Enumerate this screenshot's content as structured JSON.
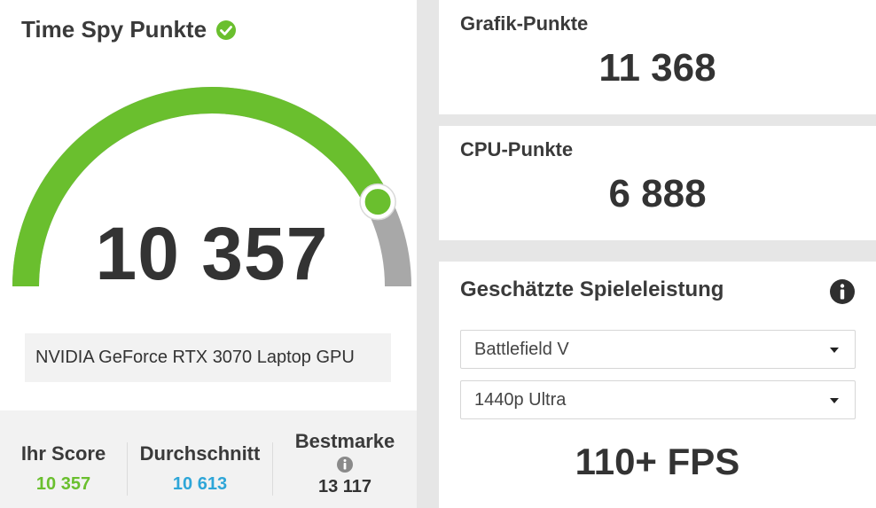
{
  "score_panel": {
    "title": "Time Spy Punkte",
    "score": "10 357",
    "gauge_level": 0.85,
    "gpu_name": "NVIDIA GeForce RTX 3070 Laptop GPU",
    "stats": {
      "your_score_label": "Ihr Score",
      "your_score_value": "10 357",
      "average_label": "Durchschnitt",
      "average_value": "10 613",
      "best_label": "Bestmarke",
      "best_value": "13 117"
    }
  },
  "graphics": {
    "label": "Grafik-Punkte",
    "value": "11 368"
  },
  "cpu": {
    "label": "CPU-Punkte",
    "value": "6 888"
  },
  "game_perf": {
    "title": "Geschätzte Spieleleistung",
    "game_select": "Battlefield V",
    "preset_select": "1440p Ultra",
    "fps": "110+ FPS"
  },
  "colors": {
    "accent_green": "#6abf2e",
    "average_blue": "#2ea6d8",
    "gauge_gray": "#a8a8a8",
    "text_dark": "#333333"
  },
  "icons": [
    "check-circle-icon",
    "info-icon",
    "chevron-down-icon"
  ]
}
